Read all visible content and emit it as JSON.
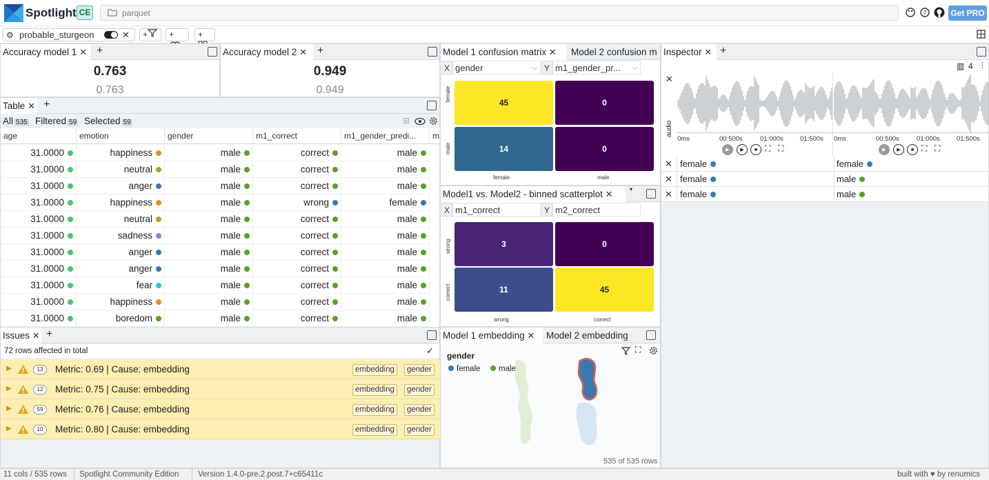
{
  "app": {
    "name": "Spotlight",
    "edition_badge": "CE",
    "path": "parquet",
    "get_pro": "Get PRO"
  },
  "filter_bar": {
    "dataset": "probable_sturgeon",
    "add_filter": "+",
    "add_cluster": "+",
    "add_group": "+"
  },
  "accuracy": [
    {
      "tab": "Accuracy model 1",
      "value": "0.763",
      "sub": "0.763"
    },
    {
      "tab": "Accuracy model 2",
      "value": "0.949",
      "sub": "0.949"
    }
  ],
  "table": {
    "tab": "Table",
    "all_label": "All",
    "all_count": "535",
    "filtered_label": "Filtered",
    "filtered_count": "59",
    "selected_label": "Selected",
    "selected_count": "59",
    "columns": [
      "age",
      "emotion",
      "gender",
      "m1_correct",
      "m1_gender_predi...",
      "m"
    ],
    "rows": [
      [
        "31.0000",
        "happiness",
        "male",
        "correct",
        "male"
      ],
      [
        "31.0000",
        "neutral",
        "male",
        "correct",
        "male"
      ],
      [
        "31.0000",
        "anger",
        "male",
        "correct",
        "male"
      ],
      [
        "31.0000",
        "happiness",
        "male",
        "wrong",
        "female"
      ],
      [
        "31.0000",
        "neutral",
        "male",
        "correct",
        "male"
      ],
      [
        "31.0000",
        "sadness",
        "male",
        "correct",
        "male"
      ],
      [
        "31.0000",
        "anger",
        "male",
        "correct",
        "male"
      ],
      [
        "31.0000",
        "anger",
        "male",
        "correct",
        "male"
      ],
      [
        "31.0000",
        "fear",
        "male",
        "correct",
        "male"
      ],
      [
        "31.0000",
        "happiness",
        "male",
        "correct",
        "male"
      ],
      [
        "31.0000",
        "boredom",
        "male",
        "correct",
        "male"
      ]
    ]
  },
  "colors": {
    "age": "#4fc26e",
    "happiness": "#f08c1f",
    "neutral": "#b3a020",
    "anger": "#3b78b0",
    "sadness": "#9a7ec8",
    "fear": "#29c4d8",
    "boredom": "#5aa02c",
    "male": "#5aa02c",
    "female": "#3b78b0",
    "correct": "#5aa02c",
    "wrong": "#3b78b0"
  },
  "issues": {
    "tab": "Issues",
    "summary": "72 rows affected in total",
    "items": [
      {
        "count": "13",
        "text": "Metric: 0.69 | Cause: embedding",
        "tags": [
          "embedding",
          "gender"
        ]
      },
      {
        "count": "12",
        "text": "Metric: 0.75 | Cause: embedding",
        "tags": [
          "embedding",
          "gender"
        ]
      },
      {
        "count": "59",
        "text": "Metric: 0.76 | Cause: embedding",
        "tags": [
          "embedding",
          "gender"
        ]
      },
      {
        "count": "10",
        "text": "Metric: 0.80 | Cause: embedding",
        "tags": [
          "embedding",
          "gender"
        ]
      }
    ]
  },
  "confusion": {
    "tab1": "Model 1 confusion matrix",
    "tab2": "Model 2 confusion m",
    "x_label": "X",
    "x_col": "gender",
    "y_label": "Y",
    "y_col": "m1_gender_pr...",
    "row_labels": [
      "female",
      "male"
    ],
    "col_labels": [
      "female",
      "male"
    ],
    "values": [
      [
        "45",
        "0"
      ],
      [
        "14",
        "0"
      ]
    ]
  },
  "scatter": {
    "tab": "Model1 vs. Model2 - binned scatterplot",
    "x_label": "X",
    "x_col": "m1_correct",
    "y_label": "Y",
    "y_col": "m2_correct",
    "row_labels": [
      "wrong",
      "correct"
    ],
    "col_labels": [
      "wrong",
      "correct"
    ],
    "values": [
      [
        "3",
        "0"
      ],
      [
        "11",
        "45"
      ]
    ]
  },
  "embedding": {
    "tab1": "Model 1 embedding",
    "tab2": "Model 2 embedding",
    "legend_title": "gender",
    "legend": [
      {
        "label": "female",
        "color": "#3b78b0"
      },
      {
        "label": "male",
        "color": "#5aa02c"
      }
    ],
    "rows_text": "535 of 535 rows"
  },
  "inspector": {
    "tab": "Inspector",
    "columns_count": "4",
    "audio_label": "audio",
    "ticks": [
      "0ms",
      "00:500s",
      "01:000s",
      "01:500s"
    ],
    "rows": [
      [
        "female",
        "female"
      ],
      [
        "female",
        "male"
      ],
      [
        "female",
        "male"
      ]
    ]
  },
  "footer": {
    "cols_rows": "11 cols / 535 rows",
    "edition": "Spotlight Community Edition",
    "version": "Version 1.4.0-pre.2.post.7+c65411c",
    "built": "built with ♥ by renumics"
  }
}
